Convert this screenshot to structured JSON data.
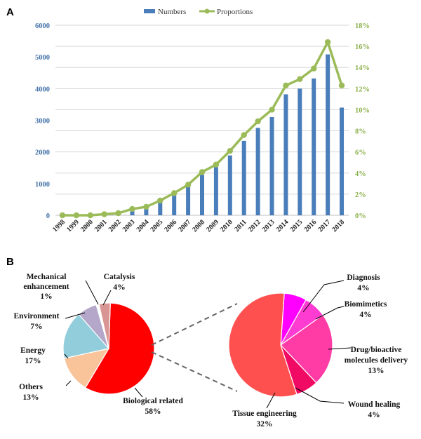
{
  "figure": {
    "panel_a_label": "A",
    "panel_b_label": "B"
  },
  "chart_data": [
    {
      "type": "bar+line",
      "title": "",
      "categories": [
        "1998",
        "1999",
        "2000",
        "2001",
        "2002",
        "2003",
        "2004",
        "2005",
        "2006",
        "2007",
        "2008",
        "2009",
        "2010",
        "2011",
        "2012",
        "2013",
        "2014",
        "2015",
        "2016",
        "2017",
        "2018"
      ],
      "series": [
        {
          "name": "Numbers",
          "kind": "bar",
          "axis": "left",
          "color": "#4a7ebb",
          "values": [
            10,
            10,
            20,
            30,
            60,
            150,
            220,
            400,
            650,
            900,
            1280,
            1530,
            1890,
            2350,
            2760,
            3100,
            3820,
            4000,
            4320,
            5080,
            3400
          ]
        },
        {
          "name": "Proportions",
          "kind": "line",
          "axis": "right",
          "color": "#9bbb59",
          "values": [
            0.0,
            0.0,
            0.0,
            0.1,
            0.2,
            0.6,
            0.8,
            1.4,
            2.1,
            2.9,
            4.1,
            4.8,
            6.1,
            7.6,
            8.9,
            10.0,
            12.3,
            12.9,
            13.9,
            16.4,
            12.3
          ]
        }
      ],
      "ylim_left": [
        0,
        6000
      ],
      "yticks_left": [
        "0",
        "1000",
        "2000",
        "3000",
        "4000",
        "5000",
        "6000"
      ],
      "ylim_right": [
        0,
        18
      ],
      "yticks_right": [
        "0%",
        "2%",
        "4%",
        "6%",
        "8%",
        "10%",
        "12%",
        "14%",
        "16%",
        "18%"
      ],
      "legend_position": "top-center",
      "grid": true
    },
    {
      "type": "pie",
      "title": "",
      "slices": [
        {
          "label": "Biological related",
          "value": 58,
          "display": "58%",
          "color": "#ff0000"
        },
        {
          "label": "Others",
          "value": 13,
          "display": "13%",
          "color": "#f9c49a"
        },
        {
          "label": "Energy",
          "value": 17,
          "display": "17%",
          "color": "#92cddc"
        },
        {
          "label": "Environment",
          "value": 7,
          "display": "7%",
          "color": "#b4a7c9"
        },
        {
          "label": "Mechanical enhancement",
          "value": 1,
          "display": "1%",
          "color": "#ffffff"
        },
        {
          "label": "Catalysis",
          "value": 4,
          "display": "4%",
          "color": "#d99594"
        }
      ],
      "label_lines": [
        [
          "Catalysis",
          "4%"
        ],
        [
          "Mechanical",
          "enhancement",
          "1%"
        ],
        [
          "Environment",
          "7%"
        ],
        [
          "Energy",
          "17%"
        ],
        [
          "Others",
          "13%"
        ],
        [
          "Biological related",
          "58%"
        ]
      ]
    },
    {
      "type": "pie",
      "title": "",
      "subset_of": "Biological related",
      "slices": [
        {
          "label": "Diagnosis",
          "value": 4,
          "display": "4%",
          "color": "#ff00ff"
        },
        {
          "label": "Biomimetics",
          "value": 4,
          "display": "4%",
          "color": "#ff3cd2"
        },
        {
          "label": "Drug/bioactive molecules delivery",
          "value": 13,
          "display": "13%",
          "color": "#ff3ca5"
        },
        {
          "label": "Wound healing",
          "value": 4,
          "display": "4%",
          "color": "#f00a64"
        },
        {
          "label": "Tissue engineering",
          "value": 32,
          "display": "32%",
          "color": "#ff5050"
        }
      ],
      "label_lines": [
        [
          "Diagnosis",
          "4%"
        ],
        [
          "Biomimetics",
          "4%"
        ],
        [
          "Drug/bioactive",
          "molecules delivery",
          "13%"
        ],
        [
          "Wound healing",
          "4%"
        ],
        [
          "Tissue engineering",
          "32%"
        ]
      ]
    }
  ]
}
